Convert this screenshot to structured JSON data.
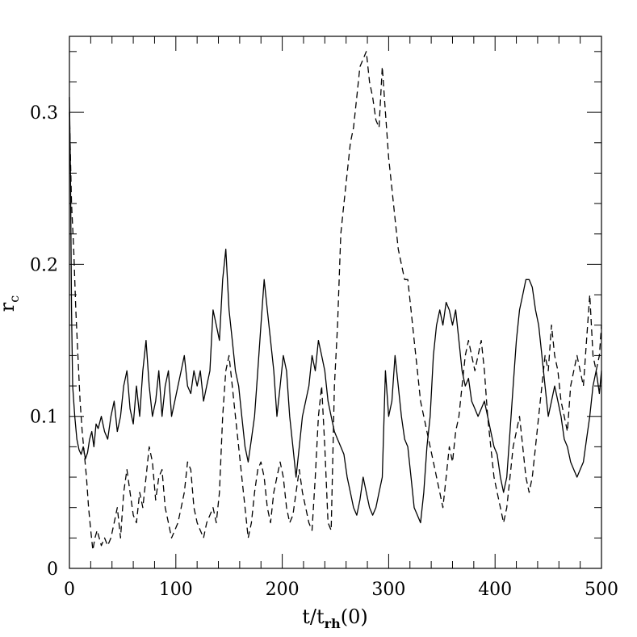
{
  "chart_data": {
    "type": "line",
    "title": "",
    "xlabel": "t/t",
    "xlabel_sub": "rh",
    "xlabel_suffix": "(0)",
    "ylabel": "r",
    "ylabel_sub": "c",
    "xlim": [
      0,
      500
    ],
    "ylim": [
      0,
      0.35
    ],
    "x_ticks": [
      0,
      100,
      200,
      300,
      400,
      500
    ],
    "x_tick_labels": [
      "0",
      "100",
      "200",
      "300",
      "400",
      "500"
    ],
    "y_ticks": [
      0,
      0.1,
      0.2,
      0.3
    ],
    "y_tick_labels": [
      "0",
      "0.1",
      "0.2",
      "0.3"
    ],
    "grid": false,
    "legend": "none",
    "series": [
      {
        "style": "solid",
        "color": "#000000",
        "x": [
          0,
          1,
          2,
          3,
          5,
          7,
          9,
          11,
          13,
          15,
          17,
          19,
          21,
          23,
          25,
          27,
          30,
          33,
          36,
          39,
          42,
          45,
          48,
          51,
          54,
          57,
          60,
          63,
          66,
          69,
          72,
          75,
          78,
          81,
          84,
          87,
          90,
          93,
          96,
          99,
          102,
          105,
          108,
          111,
          114,
          117,
          120,
          123,
          126,
          129,
          132,
          135,
          138,
          141,
          144,
          147,
          150,
          153,
          156,
          159,
          162,
          165,
          168,
          171,
          174,
          177,
          180,
          183,
          186,
          189,
          192,
          195,
          198,
          201,
          204,
          207,
          210,
          213,
          216,
          219,
          222,
          225,
          228,
          231,
          234,
          237,
          240,
          243,
          246,
          249,
          252,
          255,
          258,
          261,
          264,
          267,
          270,
          273,
          276,
          279,
          282,
          285,
          288,
          291,
          294,
          297,
          300,
          303,
          306,
          309,
          312,
          315,
          318,
          321,
          324,
          327,
          330,
          333,
          336,
          339,
          342,
          345,
          348,
          351,
          354,
          357,
          360,
          363,
          366,
          369,
          372,
          375,
          378,
          381,
          384,
          387,
          390,
          393,
          396,
          399,
          402,
          405,
          408,
          411,
          414,
          417,
          420,
          423,
          426,
          429,
          432,
          435,
          438,
          441,
          444,
          447,
          450,
          453,
          456,
          459,
          462,
          465,
          468,
          471,
          474,
          477,
          480,
          483,
          486,
          489,
          492,
          495,
          498,
          500
        ],
        "y": [
          0.31,
          0.26,
          0.17,
          0.12,
          0.1,
          0.085,
          0.078,
          0.075,
          0.08,
          0.072,
          0.076,
          0.085,
          0.09,
          0.08,
          0.095,
          0.092,
          0.1,
          0.09,
          0.085,
          0.1,
          0.11,
          0.09,
          0.1,
          0.12,
          0.13,
          0.105,
          0.095,
          0.12,
          0.1,
          0.13,
          0.15,
          0.12,
          0.1,
          0.11,
          0.13,
          0.1,
          0.12,
          0.13,
          0.1,
          0.11,
          0.12,
          0.13,
          0.14,
          0.12,
          0.115,
          0.13,
          0.12,
          0.13,
          0.11,
          0.12,
          0.13,
          0.17,
          0.16,
          0.15,
          0.19,
          0.21,
          0.17,
          0.15,
          0.13,
          0.12,
          0.1,
          0.08,
          0.07,
          0.085,
          0.1,
          0.13,
          0.16,
          0.19,
          0.17,
          0.15,
          0.13,
          0.1,
          0.12,
          0.14,
          0.13,
          0.1,
          0.08,
          0.06,
          0.08,
          0.1,
          0.11,
          0.12,
          0.14,
          0.13,
          0.15,
          0.14,
          0.13,
          0.11,
          0.1,
          0.09,
          0.085,
          0.08,
          0.075,
          0.06,
          0.05,
          0.04,
          0.035,
          0.045,
          0.06,
          0.05,
          0.04,
          0.035,
          0.04,
          0.05,
          0.06,
          0.13,
          0.1,
          0.11,
          0.14,
          0.12,
          0.1,
          0.085,
          0.08,
          0.06,
          0.04,
          0.035,
          0.03,
          0.05,
          0.08,
          0.1,
          0.14,
          0.16,
          0.17,
          0.16,
          0.175,
          0.17,
          0.16,
          0.17,
          0.15,
          0.13,
          0.12,
          0.125,
          0.11,
          0.105,
          0.1,
          0.105,
          0.11,
          0.1,
          0.09,
          0.08,
          0.075,
          0.06,
          0.05,
          0.06,
          0.09,
          0.12,
          0.15,
          0.17,
          0.18,
          0.19,
          0.19,
          0.185,
          0.17,
          0.16,
          0.14,
          0.12,
          0.1,
          0.11,
          0.12,
          0.11,
          0.1,
          0.085,
          0.08,
          0.07,
          0.065,
          0.06,
          0.065,
          0.07,
          0.085,
          0.1,
          0.12,
          0.13,
          0.115,
          0.13
        ]
      },
      {
        "style": "dashed",
        "color": "#000000",
        "x": [
          0,
          1,
          2,
          4,
          6,
          8,
          10,
          12,
          14,
          16,
          18,
          20,
          22,
          24,
          26,
          28,
          30,
          33,
          36,
          39,
          42,
          45,
          48,
          51,
          54,
          57,
          60,
          63,
          66,
          69,
          72,
          75,
          78,
          81,
          84,
          87,
          90,
          93,
          96,
          99,
          102,
          105,
          108,
          111,
          114,
          117,
          120,
          123,
          126,
          129,
          132,
          135,
          138,
          141,
          144,
          147,
          150,
          153,
          156,
          159,
          162,
          165,
          168,
          171,
          174,
          177,
          180,
          183,
          186,
          189,
          192,
          195,
          198,
          201,
          204,
          207,
          210,
          213,
          216,
          219,
          222,
          225,
          228,
          231,
          234,
          237,
          240,
          243,
          246,
          249,
          252,
          255,
          258,
          261,
          264,
          267,
          270,
          273,
          276,
          279,
          282,
          285,
          288,
          291,
          294,
          297,
          300,
          303,
          306,
          309,
          312,
          315,
          318,
          321,
          324,
          327,
          330,
          333,
          336,
          339,
          342,
          345,
          348,
          351,
          354,
          357,
          360,
          363,
          366,
          369,
          372,
          375,
          378,
          381,
          384,
          387,
          390,
          393,
          396,
          399,
          402,
          405,
          408,
          411,
          414,
          417,
          420,
          423,
          426,
          429,
          432,
          435,
          438,
          441,
          444,
          447,
          450,
          453,
          456,
          459,
          462,
          465,
          468,
          471,
          474,
          477,
          480,
          483,
          486,
          489,
          492,
          495,
          498,
          500
        ],
        "y": [
          0.3,
          0.27,
          0.24,
          0.21,
          0.17,
          0.14,
          0.11,
          0.09,
          0.075,
          0.06,
          0.04,
          0.025,
          0.012,
          0.02,
          0.025,
          0.02,
          0.015,
          0.02,
          0.015,
          0.02,
          0.03,
          0.04,
          0.02,
          0.05,
          0.065,
          0.05,
          0.035,
          0.03,
          0.05,
          0.04,
          0.06,
          0.08,
          0.07,
          0.045,
          0.06,
          0.065,
          0.04,
          0.03,
          0.02,
          0.025,
          0.03,
          0.04,
          0.05,
          0.07,
          0.065,
          0.04,
          0.03,
          0.025,
          0.02,
          0.03,
          0.035,
          0.04,
          0.03,
          0.05,
          0.1,
          0.13,
          0.14,
          0.12,
          0.1,
          0.08,
          0.06,
          0.04,
          0.02,
          0.03,
          0.05,
          0.065,
          0.07,
          0.06,
          0.04,
          0.03,
          0.05,
          0.06,
          0.07,
          0.06,
          0.04,
          0.03,
          0.035,
          0.05,
          0.065,
          0.05,
          0.04,
          0.03,
          0.025,
          0.06,
          0.1,
          0.12,
          0.08,
          0.03,
          0.025,
          0.12,
          0.16,
          0.22,
          0.24,
          0.26,
          0.28,
          0.29,
          0.31,
          0.33,
          0.335,
          0.34,
          0.32,
          0.31,
          0.295,
          0.29,
          0.33,
          0.3,
          0.27,
          0.25,
          0.23,
          0.21,
          0.2,
          0.19,
          0.19,
          0.17,
          0.15,
          0.13,
          0.11,
          0.1,
          0.09,
          0.08,
          0.07,
          0.06,
          0.05,
          0.04,
          0.06,
          0.08,
          0.07,
          0.09,
          0.1,
          0.12,
          0.14,
          0.15,
          0.14,
          0.13,
          0.14,
          0.15,
          0.13,
          0.1,
          0.08,
          0.06,
          0.05,
          0.04,
          0.03,
          0.04,
          0.06,
          0.08,
          0.09,
          0.1,
          0.08,
          0.06,
          0.05,
          0.06,
          0.08,
          0.1,
          0.12,
          0.14,
          0.13,
          0.16,
          0.14,
          0.13,
          0.11,
          0.1,
          0.09,
          0.12,
          0.13,
          0.14,
          0.13,
          0.12,
          0.15,
          0.18,
          0.14,
          0.13,
          0.14,
          0.16
        ]
      }
    ]
  }
}
